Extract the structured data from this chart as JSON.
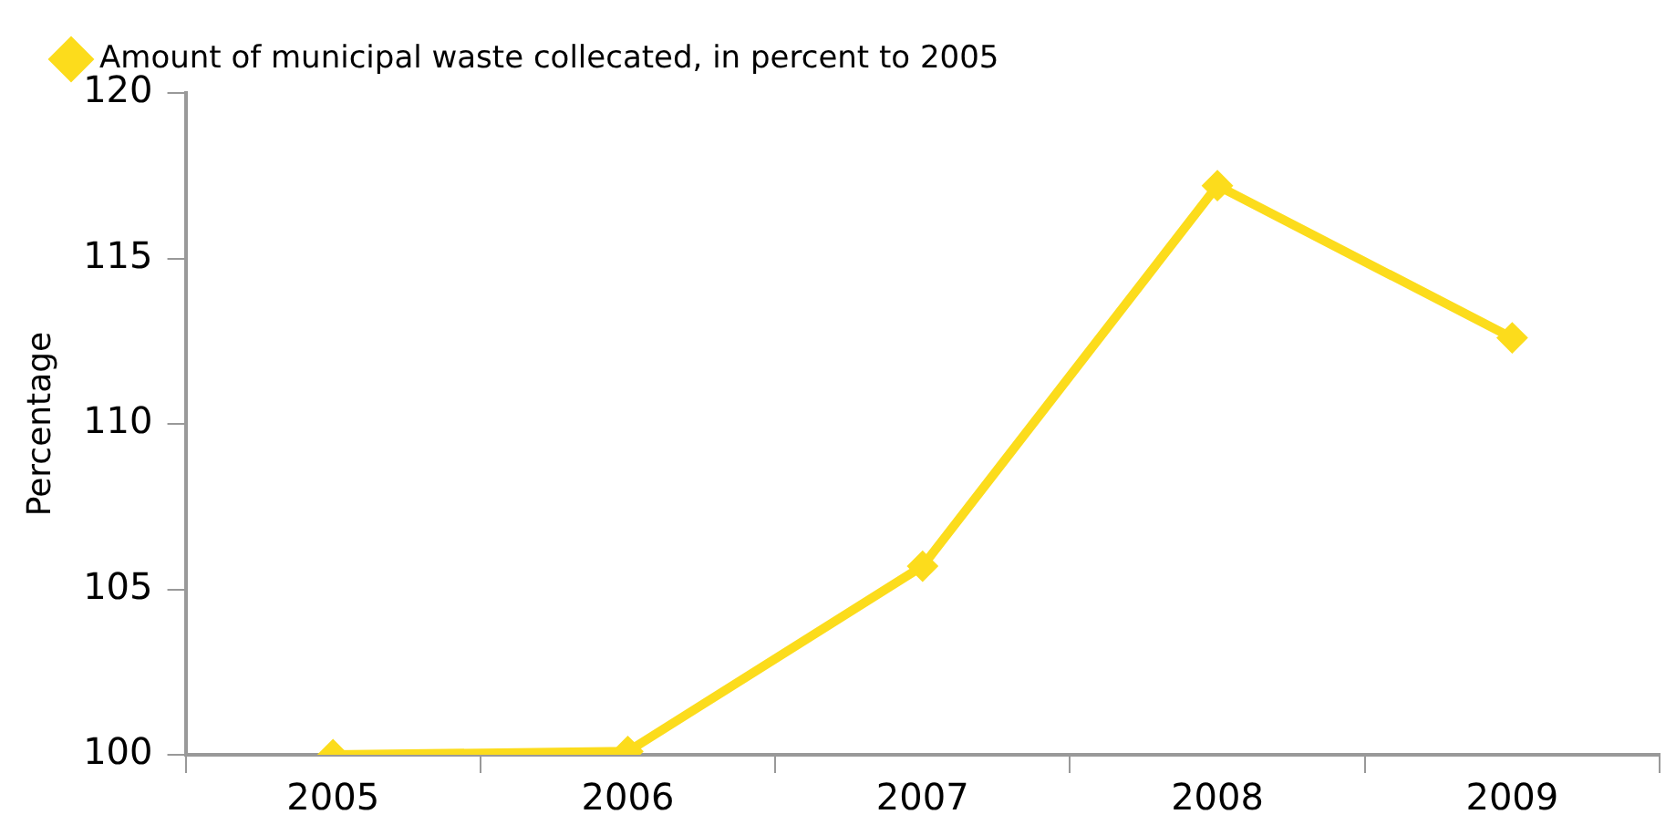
{
  "chart_data": {
    "type": "line",
    "ylabel": "Percentage",
    "categories": [
      "2005",
      "2006",
      "2007",
      "2008",
      "2009"
    ],
    "series": [
      {
        "name": "Amount of municipal waste collecated, in percent to 2005",
        "color": "#fcdc1c",
        "values": [
          100,
          100.1,
          105.7,
          117.2,
          112.6
        ]
      }
    ],
    "ylim": [
      100,
      120
    ],
    "yticks": [
      100,
      105,
      110,
      115,
      120
    ],
    "grid": false,
    "legend": "top left",
    "marker": "diamond",
    "line_style": "solid"
  }
}
